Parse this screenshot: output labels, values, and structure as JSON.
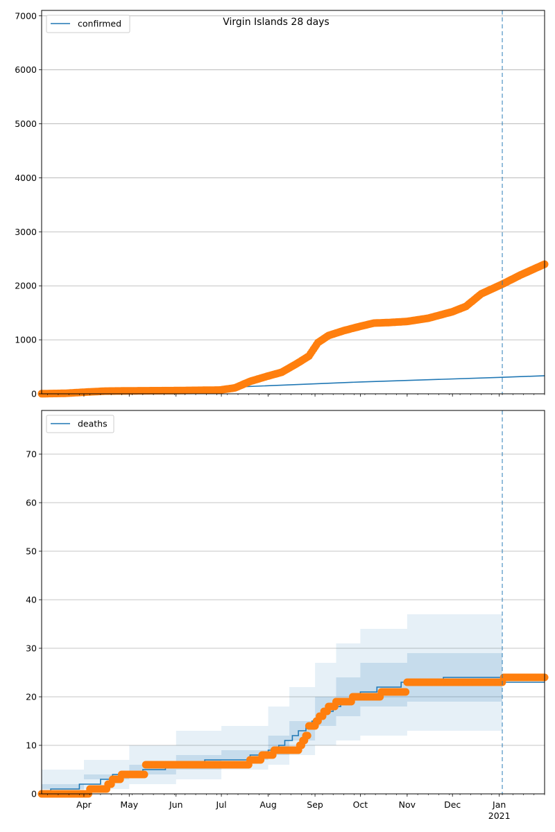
{
  "figure": {
    "title": "Virgin Islands 28 days"
  },
  "x_axis": {
    "months": [
      {
        "label": "Apr",
        "date": "2020-04-01"
      },
      {
        "label": "May",
        "date": "2020-05-01"
      },
      {
        "label": "Jun",
        "date": "2020-06-01"
      },
      {
        "label": "Jul",
        "date": "2020-07-01"
      },
      {
        "label": "Aug",
        "date": "2020-08-01"
      },
      {
        "label": "Sep",
        "date": "2020-09-01"
      },
      {
        "label": "Oct",
        "date": "2020-10-01"
      },
      {
        "label": "Nov",
        "date": "2020-11-01"
      },
      {
        "label": "Dec",
        "date": "2020-12-01"
      },
      {
        "label": "Jan",
        "date": "2021-01-01"
      }
    ],
    "year_label": "2021",
    "range": [
      "2020-03-04",
      "2021-01-31"
    ],
    "vline_date": "2021-01-03"
  },
  "chart_data": [
    {
      "type": "line",
      "ylim": [
        0,
        7100
      ],
      "yticks": [
        0,
        1000,
        2000,
        3000,
        4000,
        5000,
        6000,
        7000
      ],
      "grid": "y",
      "legend": "top-left",
      "colors": {
        "model": "#1f77b4",
        "observed": "#ff7f0e"
      },
      "series": [
        {
          "name": "confirmed",
          "kind": "model-line",
          "points": [
            [
              "2020-03-04",
              0
            ],
            [
              "2020-07-05",
              120
            ],
            [
              "2020-10-01",
              220
            ],
            [
              "2021-01-03",
              305
            ],
            [
              "2021-01-31",
              335
            ]
          ]
        },
        {
          "kind": "observed",
          "points": [
            [
              "2020-03-04",
              2
            ],
            [
              "2020-03-20",
              10
            ],
            [
              "2020-04-01",
              30
            ],
            [
              "2020-04-15",
              50
            ],
            [
              "2020-05-01",
              55
            ],
            [
              "2020-06-01",
              60
            ],
            [
              "2020-06-30",
              70
            ],
            [
              "2020-07-10",
              110
            ],
            [
              "2020-07-20",
              230
            ],
            [
              "2020-08-01",
              330
            ],
            [
              "2020-08-10",
              400
            ],
            [
              "2020-08-20",
              560
            ],
            [
              "2020-08-28",
              700
            ],
            [
              "2020-09-03",
              950
            ],
            [
              "2020-09-10",
              1080
            ],
            [
              "2020-09-20",
              1170
            ],
            [
              "2020-10-01",
              1250
            ],
            [
              "2020-10-10",
              1310
            ],
            [
              "2020-10-20",
              1320
            ],
            [
              "2020-11-01",
              1340
            ],
            [
              "2020-11-15",
              1400
            ],
            [
              "2020-12-01",
              1520
            ],
            [
              "2020-12-10",
              1620
            ],
            [
              "2020-12-20",
              1850
            ],
            [
              "2021-01-03",
              2030
            ],
            [
              "2021-01-15",
              2200
            ],
            [
              "2021-01-31",
              2400
            ]
          ]
        }
      ]
    },
    {
      "type": "line",
      "ylim": [
        0,
        79
      ],
      "yticks": [
        0,
        10,
        20,
        30,
        40,
        50,
        60,
        70
      ],
      "grid": "y",
      "legend": "top-left",
      "colors": {
        "model": "#1f77b4",
        "observed": "#ff7f0e"
      },
      "series": [
        {
          "name": "deaths",
          "kind": "model-step",
          "points": [
            [
              "2020-03-04",
              0
            ],
            [
              "2020-03-10",
              1
            ],
            [
              "2020-03-29",
              2
            ],
            [
              "2020-04-12",
              3
            ],
            [
              "2020-04-20",
              4
            ],
            [
              "2020-05-10",
              5
            ],
            [
              "2020-05-25",
              6
            ],
            [
              "2020-06-20",
              7
            ],
            [
              "2020-07-20",
              8
            ],
            [
              "2020-08-01",
              9
            ],
            [
              "2020-08-08",
              10
            ],
            [
              "2020-08-12",
              11
            ],
            [
              "2020-08-17",
              12
            ],
            [
              "2020-08-21",
              13
            ],
            [
              "2020-08-26",
              14
            ],
            [
              "2020-08-30",
              15
            ],
            [
              "2020-09-04",
              16
            ],
            [
              "2020-09-08",
              17
            ],
            [
              "2020-09-13",
              18
            ],
            [
              "2020-09-18",
              19
            ],
            [
              "2020-09-25",
              20
            ],
            [
              "2020-10-01",
              21
            ],
            [
              "2020-10-12",
              22
            ],
            [
              "2020-10-28",
              23
            ],
            [
              "2020-11-25",
              24
            ],
            [
              "2021-01-03",
              23
            ]
          ]
        },
        {
          "kind": "observed",
          "points": [
            [
              "2020-03-04",
              0
            ],
            [
              "2020-04-05",
              1
            ],
            [
              "2020-04-17",
              2
            ],
            [
              "2020-04-20",
              3
            ],
            [
              "2020-04-26",
              4
            ],
            [
              "2020-05-12",
              6
            ],
            [
              "2020-07-20",
              7
            ],
            [
              "2020-07-28",
              8
            ],
            [
              "2020-08-05",
              9
            ],
            [
              "2020-08-22",
              10
            ],
            [
              "2020-08-24",
              11
            ],
            [
              "2020-08-26",
              12
            ],
            [
              "2020-08-28",
              14
            ],
            [
              "2020-09-02",
              15
            ],
            [
              "2020-09-04",
              16
            ],
            [
              "2020-09-07",
              17
            ],
            [
              "2020-09-10",
              18
            ],
            [
              "2020-09-15",
              19
            ],
            [
              "2020-09-26",
              20
            ],
            [
              "2020-10-15",
              21
            ],
            [
              "2020-11-01",
              23
            ],
            [
              "2021-01-04",
              24
            ]
          ]
        },
        {
          "kind": "band-outer",
          "points": [
            [
              "2020-03-04",
              0,
              5
            ],
            [
              "2020-04-01",
              0,
              7
            ],
            [
              "2020-05-01",
              1,
              10
            ],
            [
              "2020-06-01",
              2,
              13
            ],
            [
              "2020-07-01",
              3,
              14
            ],
            [
              "2020-08-01",
              5,
              18
            ],
            [
              "2020-08-15",
              6,
              22
            ],
            [
              "2020-09-01",
              8,
              27
            ],
            [
              "2020-09-15",
              10,
              31
            ],
            [
              "2020-10-01",
              11,
              34
            ],
            [
              "2020-11-01",
              12,
              37
            ],
            [
              "2020-12-01",
              13,
              37
            ],
            [
              "2021-01-03",
              13,
              37
            ]
          ]
        },
        {
          "kind": "band-inner",
          "points": [
            [
              "2020-03-04",
              0,
              2
            ],
            [
              "2020-04-01",
              1,
              4
            ],
            [
              "2020-05-01",
              3,
              6
            ],
            [
              "2020-06-01",
              4,
              8
            ],
            [
              "2020-07-01",
              5,
              9
            ],
            [
              "2020-08-01",
              7,
              12
            ],
            [
              "2020-08-15",
              8,
              15
            ],
            [
              "2020-09-01",
              11,
              20
            ],
            [
              "2020-09-15",
              14,
              24
            ],
            [
              "2020-10-01",
              16,
              27
            ],
            [
              "2020-11-01",
              18,
              29
            ],
            [
              "2020-12-01",
              19,
              29
            ],
            [
              "2021-01-03",
              19,
              29
            ]
          ]
        }
      ]
    }
  ]
}
